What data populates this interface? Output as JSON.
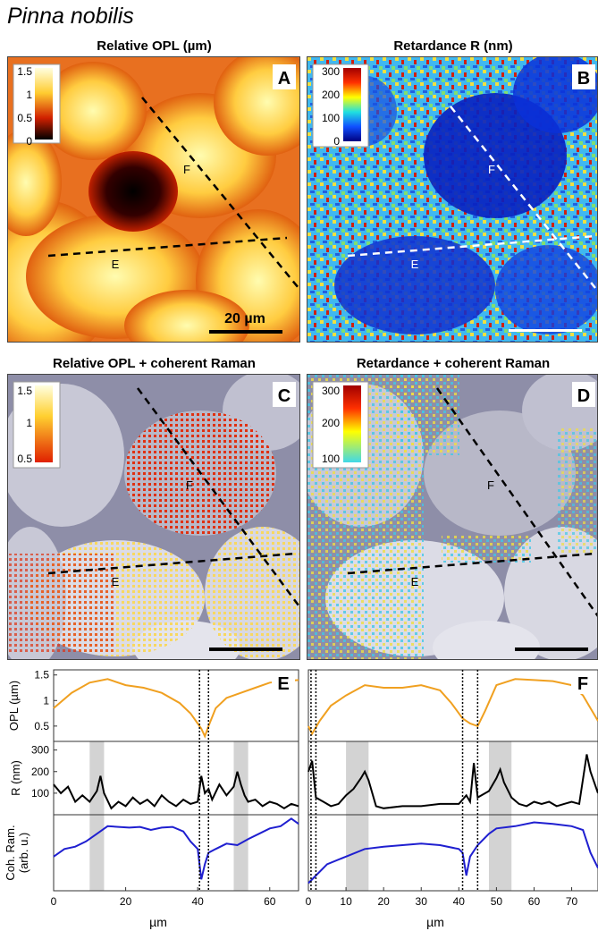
{
  "figure_title": "Pinna nobilis",
  "panels": {
    "A": {
      "title": "Relative OPL (µm)",
      "letter": "A",
      "colorbar_ticks": [
        "1.5",
        "1",
        "0.5",
        "0"
      ],
      "scalebar_label": "20 µm",
      "labels": [
        "F",
        "E"
      ]
    },
    "B": {
      "title": "Retardance R (nm)",
      "letter": "B",
      "colorbar_ticks": [
        "300",
        "200",
        "100",
        "0"
      ],
      "labels": [
        "F",
        "E"
      ]
    },
    "C": {
      "title": "Relative OPL + coherent Raman",
      "letter": "C",
      "colorbar_ticks": [
        "1.5",
        "1",
        "0.5"
      ],
      "labels": [
        "F",
        "E"
      ]
    },
    "D": {
      "title": "Retardance + coherent Raman",
      "letter": "D",
      "colorbar_ticks": [
        "300",
        "200",
        "100"
      ],
      "labels": [
        "F",
        "E"
      ]
    }
  },
  "colors": {
    "opl": "#f0a020",
    "retardance": "#000000",
    "raman": "#1f1fd0",
    "highlight": "#d3d3d3"
  },
  "chart_data": [
    {
      "type": "line",
      "panel": "E",
      "xlabel": "µm",
      "xlim": [
        0,
        68
      ],
      "xticks": [
        "0",
        "20",
        "40",
        "60"
      ],
      "vlines": [
        40.5,
        43
      ],
      "highlight_ranges": [
        [
          10,
          14
        ],
        [
          50,
          54
        ]
      ],
      "series": [
        {
          "ylabel": "OPL (µm)",
          "ylim": [
            0.2,
            1.6
          ],
          "yticks": [
            "1.5",
            "1",
            "0.5"
          ],
          "x": [
            0,
            5,
            10,
            15,
            20,
            25,
            30,
            35,
            38,
            40,
            41,
            42,
            43,
            45,
            48,
            52,
            56,
            60,
            64,
            68
          ],
          "y": [
            0.85,
            1.15,
            1.35,
            1.42,
            1.3,
            1.25,
            1.15,
            0.95,
            0.75,
            0.55,
            0.45,
            0.3,
            0.5,
            0.85,
            1.05,
            1.15,
            1.25,
            1.35,
            1.38,
            1.4
          ]
        },
        {
          "ylabel": "R (nm)",
          "ylim": [
            0,
            340
          ],
          "yticks": [
            "300",
            "200",
            "100"
          ],
          "x": [
            0,
            2,
            4,
            6,
            8,
            10,
            12,
            13,
            14,
            16,
            18,
            20,
            22,
            24,
            26,
            28,
            30,
            32,
            34,
            36,
            38,
            40,
            41,
            42,
            43,
            44,
            46,
            48,
            50,
            51,
            52,
            53,
            54,
            56,
            58,
            60,
            62,
            64,
            66,
            68
          ],
          "y": [
            140,
            100,
            130,
            60,
            90,
            60,
            110,
            180,
            100,
            30,
            60,
            40,
            80,
            50,
            70,
            40,
            90,
            60,
            40,
            70,
            50,
            60,
            180,
            100,
            120,
            70,
            140,
            90,
            130,
            200,
            140,
            90,
            60,
            70,
            40,
            60,
            50,
            30,
            50,
            40
          ]
        },
        {
          "ylabel": "Coh. Ram. (arb. u.)",
          "ylim": [
            0,
            1
          ],
          "yticks": [],
          "x": [
            0,
            3,
            6,
            9,
            12,
            15,
            18,
            21,
            24,
            27,
            30,
            33,
            36,
            38,
            40,
            41,
            42,
            43,
            45,
            48,
            51,
            54,
            57,
            60,
            63,
            66,
            68
          ],
          "y": [
            0.45,
            0.55,
            0.58,
            0.65,
            0.75,
            0.85,
            0.84,
            0.83,
            0.84,
            0.8,
            0.83,
            0.84,
            0.78,
            0.65,
            0.55,
            0.15,
            0.35,
            0.5,
            0.55,
            0.62,
            0.6,
            0.68,
            0.75,
            0.82,
            0.85,
            0.95,
            0.88
          ]
        }
      ]
    },
    {
      "type": "line",
      "panel": "F",
      "xlabel": "µm",
      "xlim": [
        0,
        77
      ],
      "xticks": [
        "0",
        "10",
        "20",
        "30",
        "40",
        "50",
        "60",
        "70"
      ],
      "vlines": [
        0.7,
        2,
        41,
        45
      ],
      "highlight_ranges": [
        [
          10,
          16
        ],
        [
          48,
          54
        ]
      ],
      "series": [
        {
          "ylabel": "OPL (µm)",
          "ylim": [
            0.2,
            1.6
          ],
          "yticks": [],
          "x": [
            0,
            1,
            3,
            6,
            10,
            15,
            20,
            25,
            30,
            35,
            38,
            41,
            43,
            45,
            47,
            50,
            55,
            60,
            65,
            70,
            73,
            75,
            77
          ],
          "y": [
            0.5,
            0.35,
            0.6,
            0.9,
            1.1,
            1.3,
            1.25,
            1.25,
            1.3,
            1.2,
            0.95,
            0.65,
            0.55,
            0.5,
            0.8,
            1.3,
            1.42,
            1.4,
            1.38,
            1.3,
            1.1,
            0.85,
            0.6
          ]
        },
        {
          "ylabel": "R (nm)",
          "ylim": [
            0,
            340
          ],
          "yticks": [],
          "x": [
            0,
            1,
            2,
            4,
            6,
            8,
            10,
            12,
            14,
            15,
            16,
            18,
            20,
            25,
            30,
            35,
            40,
            42,
            43,
            44,
            45,
            48,
            50,
            51,
            52,
            54,
            56,
            58,
            60,
            62,
            64,
            66,
            68,
            70,
            72,
            74,
            75,
            77
          ],
          "y": [
            200,
            250,
            80,
            60,
            40,
            50,
            90,
            120,
            170,
            200,
            160,
            40,
            30,
            40,
            40,
            50,
            50,
            90,
            60,
            240,
            80,
            110,
            170,
            210,
            150,
            80,
            50,
            40,
            60,
            50,
            60,
            40,
            50,
            60,
            50,
            280,
            200,
            100
          ]
        },
        {
          "ylabel": "Coh. Ram. (arb. u.)",
          "ylim": [
            0,
            1
          ],
          "yticks": [],
          "x": [
            0,
            2,
            5,
            10,
            15,
            20,
            25,
            30,
            35,
            40,
            41,
            42,
            43,
            45,
            48,
            50,
            55,
            60,
            65,
            70,
            73,
            75,
            77
          ],
          "y": [
            0.1,
            0.2,
            0.35,
            0.45,
            0.55,
            0.58,
            0.6,
            0.62,
            0.6,
            0.55,
            0.5,
            0.2,
            0.45,
            0.6,
            0.75,
            0.82,
            0.85,
            0.9,
            0.88,
            0.85,
            0.8,
            0.5,
            0.3
          ]
        }
      ]
    }
  ]
}
